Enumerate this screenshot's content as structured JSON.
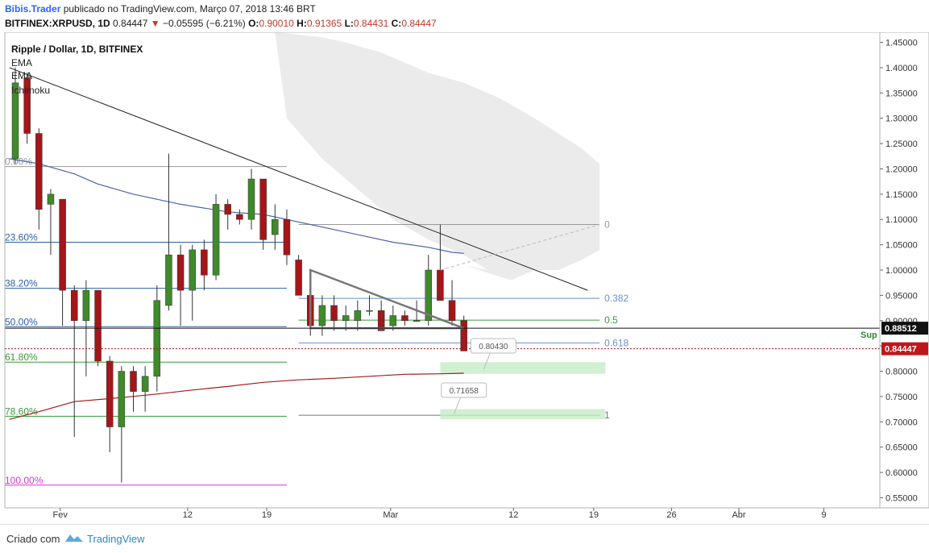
{
  "header": {
    "author": "Bibis.Trader",
    "published_text": "publicado no TradingView.com, Março 07, 2018 13:46 BRT",
    "symbol": "BITFINEX:XRPUSD, 1D",
    "price": "0.84447",
    "change": "−0.05595 (−6.21%)",
    "o_label": "O:",
    "o_value": "0.90010",
    "h_label": "H:",
    "h_value": "0.91365",
    "l_label": "L:",
    "l_value": "0.84431",
    "c_label": "C:",
    "c_value": "0.84447"
  },
  "legend": {
    "title": "Ripple / Dollar, 1D, BITFINEX",
    "items": [
      "EMA",
      "EMA",
      "Ichimoku"
    ]
  },
  "footer": {
    "criado": "Criado com",
    "brand": "TradingView"
  },
  "colors": {
    "bull": "#3f8a2b",
    "bear": "#a3161a",
    "fib_blue": "#2e5fa8",
    "fib_green": "#3a9a3a",
    "fib_magenta": "#d433d4",
    "ema_blue": "#4a64a8",
    "ema_red": "#a31c1c",
    "cloud": "#e6e6e6"
  },
  "chart_data": {
    "type": "candlestick",
    "ylim": [
      0.53,
      1.47
    ],
    "y_ticks": [
      "1.45000",
      "1.40000",
      "1.35000",
      "1.30000",
      "1.25000",
      "1.20000",
      "1.15000",
      "1.10000",
      "1.05000",
      "1.00000",
      "0.95000",
      "0.90000",
      "0.85000",
      "0.80000",
      "0.75000",
      "0.70000",
      "0.65000",
      "0.60000",
      "0.55000"
    ],
    "x_ticks": [
      {
        "label": "Fev",
        "day": 29.8
      },
      {
        "label": "12",
        "day": 40.6
      },
      {
        "label": "19",
        "day": 47.3
      },
      {
        "label": "Mar",
        "day": 57.8
      },
      {
        "label": "12",
        "day": 68.2
      },
      {
        "label": "19",
        "day": 75.0
      },
      {
        "label": "26",
        "day": 81.6
      },
      {
        "label": "Abr",
        "day": 87.3
      },
      {
        "label": "9",
        "day": 94.5
      }
    ],
    "candles": [
      {
        "d": 26,
        "o": 1.22,
        "h": 1.4,
        "l": 1.21,
        "c": 1.37
      },
      {
        "d": 27,
        "o": 1.38,
        "h": 1.39,
        "l": 1.25,
        "c": 1.27
      },
      {
        "d": 28,
        "o": 1.27,
        "h": 1.28,
        "l": 1.08,
        "c": 1.12
      },
      {
        "d": 29,
        "o": 1.13,
        "h": 1.16,
        "l": 1.03,
        "c": 1.15
      },
      {
        "d": 30,
        "o": 1.14,
        "h": 1.14,
        "l": 0.89,
        "c": 0.96
      },
      {
        "d": 31,
        "o": 0.96,
        "h": 0.97,
        "l": 0.67,
        "c": 0.9
      },
      {
        "d": 32,
        "o": 0.9,
        "h": 0.98,
        "l": 0.79,
        "c": 0.96
      },
      {
        "d": 33,
        "o": 0.96,
        "h": 0.96,
        "l": 0.81,
        "c": 0.82
      },
      {
        "d": 34,
        "o": 0.82,
        "h": 0.83,
        "l": 0.64,
        "c": 0.69
      },
      {
        "d": 35,
        "o": 0.69,
        "h": 0.81,
        "l": 0.58,
        "c": 0.8
      },
      {
        "d": 36,
        "o": 0.8,
        "h": 0.81,
        "l": 0.72,
        "c": 0.76
      },
      {
        "d": 37,
        "o": 0.76,
        "h": 0.81,
        "l": 0.72,
        "c": 0.79
      },
      {
        "d": 38,
        "o": 0.79,
        "h": 0.97,
        "l": 0.76,
        "c": 0.94
      },
      {
        "d": 39,
        "o": 0.93,
        "h": 1.23,
        "l": 0.92,
        "c": 1.03
      },
      {
        "d": 40,
        "o": 1.03,
        "h": 1.05,
        "l": 0.89,
        "c": 0.96
      },
      {
        "d": 41,
        "o": 0.96,
        "h": 1.05,
        "l": 0.9,
        "c": 1.04
      },
      {
        "d": 42,
        "o": 1.04,
        "h": 1.06,
        "l": 0.96,
        "c": 0.99
      },
      {
        "d": 43,
        "o": 0.99,
        "h": 1.15,
        "l": 0.98,
        "c": 1.13
      },
      {
        "d": 44,
        "o": 1.13,
        "h": 1.14,
        "l": 1.08,
        "c": 1.11
      },
      {
        "d": 45,
        "o": 1.11,
        "h": 1.12,
        "l": 1.09,
        "c": 1.1
      },
      {
        "d": 46,
        "o": 1.1,
        "h": 1.2,
        "l": 1.08,
        "c": 1.18
      },
      {
        "d": 47,
        "o": 1.18,
        "h": 1.18,
        "l": 1.04,
        "c": 1.06
      },
      {
        "d": 48,
        "o": 1.07,
        "h": 1.13,
        "l": 1.04,
        "c": 1.1
      },
      {
        "d": 49,
        "o": 1.1,
        "h": 1.12,
        "l": 1.01,
        "c": 1.03
      },
      {
        "d": 50,
        "o": 1.02,
        "h": 1.03,
        "l": 0.95,
        "c": 0.95
      },
      {
        "d": 51,
        "o": 0.95,
        "h": 0.99,
        "l": 0.87,
        "c": 0.89
      },
      {
        "d": 52,
        "o": 0.89,
        "h": 0.95,
        "l": 0.87,
        "c": 0.93
      },
      {
        "d": 53,
        "o": 0.93,
        "h": 0.95,
        "l": 0.88,
        "c": 0.9
      },
      {
        "d": 54,
        "o": 0.9,
        "h": 0.93,
        "l": 0.88,
        "c": 0.91
      },
      {
        "d": 55,
        "o": 0.9,
        "h": 0.94,
        "l": 0.88,
        "c": 0.92
      },
      {
        "d": 56,
        "o": 0.92,
        "h": 0.95,
        "l": 0.91,
        "c": 0.92
      },
      {
        "d": 57,
        "o": 0.92,
        "h": 0.94,
        "l": 0.88,
        "c": 0.88
      },
      {
        "d": 58,
        "o": 0.89,
        "h": 0.93,
        "l": 0.88,
        "c": 0.91
      },
      {
        "d": 59,
        "o": 0.91,
        "h": 0.92,
        "l": 0.89,
        "c": 0.9
      },
      {
        "d": 60,
        "o": 0.9,
        "h": 0.94,
        "l": 0.9,
        "c": 0.9
      },
      {
        "d": 61,
        "o": 0.9,
        "h": 1.03,
        "l": 0.89,
        "c": 1.0
      },
      {
        "d": 62,
        "o": 1.0,
        "h": 1.09,
        "l": 0.94,
        "c": 0.94
      },
      {
        "d": 63,
        "o": 0.94,
        "h": 0.98,
        "l": 0.89,
        "c": 0.9
      },
      {
        "d": 64,
        "o": 0.9,
        "h": 0.91,
        "l": 0.84,
        "c": 0.84
      }
    ],
    "ema_fast": [
      [
        25.5,
        1.22
      ],
      [
        28,
        1.21
      ],
      [
        31,
        1.19
      ],
      [
        33,
        1.17
      ],
      [
        36,
        1.15
      ],
      [
        40,
        1.13
      ],
      [
        44,
        1.115
      ],
      [
        47,
        1.11
      ],
      [
        50,
        1.095
      ],
      [
        53,
        1.08
      ],
      [
        56,
        1.065
      ],
      [
        58,
        1.055
      ],
      [
        61,
        1.045
      ],
      [
        63,
        1.035
      ],
      [
        64,
        1.033
      ]
    ],
    "ema_slow": [
      [
        25.5,
        0.705
      ],
      [
        28,
        0.72
      ],
      [
        31,
        0.74
      ],
      [
        35,
        0.748
      ],
      [
        38,
        0.755
      ],
      [
        41,
        0.763
      ],
      [
        44,
        0.77
      ],
      [
        47,
        0.778
      ],
      [
        50,
        0.783
      ],
      [
        53,
        0.786
      ],
      [
        56,
        0.79
      ],
      [
        59,
        0.794
      ],
      [
        62,
        0.795
      ],
      [
        64,
        0.796
      ]
    ],
    "cloud_top": [
      [
        48,
        1.47
      ],
      [
        52,
        1.46
      ],
      [
        54,
        1.45
      ],
      [
        57,
        1.43
      ],
      [
        59,
        1.41
      ],
      [
        61,
        1.39
      ],
      [
        64,
        1.37
      ],
      [
        67,
        1.34
      ],
      [
        70,
        1.3
      ],
      [
        72,
        1.27
      ],
      [
        74,
        1.24
      ],
      [
        75.5,
        1.21
      ],
      [
        75.5,
        1.04
      ],
      [
        74,
        1.02
      ],
      [
        72,
        1.0
      ],
      [
        70,
        1.0
      ],
      [
        68,
        0.98
      ],
      [
        66,
        1.0
      ],
      [
        64,
        1.01
      ]
    ],
    "cloud_bottom": [
      [
        48,
        1.47
      ],
      [
        49,
        1.3
      ],
      [
        52,
        1.22
      ],
      [
        55,
        1.16
      ],
      [
        58,
        1.1
      ],
      [
        61,
        1.06
      ],
      [
        64,
        1.03
      ],
      [
        66,
        1.0
      ],
      [
        68,
        0.98
      ]
    ],
    "fib_left": [
      {
        "label": "0.00%",
        "value": 1.2045,
        "color": "#999999",
        "x_end": 49
      },
      {
        "label": "23.60%",
        "value": 1.055,
        "color": "#2e5fa8",
        "x_end": 49
      },
      {
        "label": "38.20%",
        "value": 0.964,
        "color": "#2e5fa8",
        "x_end": 49
      },
      {
        "label": "50.00%",
        "value": 0.888,
        "color": "#2e5fa8",
        "x_end": 49
      },
      {
        "label": "61.80%",
        "value": 0.818,
        "color": "#3a9a3a",
        "x_end": 49
      },
      {
        "label": "78.60%",
        "value": 0.711,
        "color": "#3a9a3a",
        "x_end": 49
      },
      {
        "label": "100.00%",
        "value": 0.575,
        "color": "#d433d4",
        "x_end": 49
      }
    ],
    "fib_right": [
      {
        "label": "0",
        "value": 1.09,
        "color": "#999999"
      },
      {
        "label": "0.382",
        "value": 0.944,
        "color": "#6a8fcf"
      },
      {
        "label": "0.5",
        "value": 0.901,
        "color": "#3a9a3a"
      },
      {
        "label": "0.618",
        "value": 0.856,
        "color": "#6a8fcf"
      },
      {
        "label": "1",
        "value": 0.713,
        "color": "#777777"
      }
    ],
    "trendline": [
      [
        25.5,
        1.4
      ],
      [
        74.5,
        0.96
      ]
    ],
    "support_price": "0.88512",
    "support_label": "Sup",
    "current_price": "0.84447",
    "boxes": [
      {
        "x1": 62,
        "x2": 76,
        "top": 0.818,
        "bottom": 0.795
      },
      {
        "x1": 62,
        "x2": 76,
        "top": 0.725,
        "bottom": 0.705
      }
    ],
    "callouts": [
      {
        "text": "0.80430",
        "x": 66.5,
        "y": 0.804
      },
      {
        "text": "0.71658",
        "x": 64,
        "y": 0.7165
      }
    ]
  }
}
